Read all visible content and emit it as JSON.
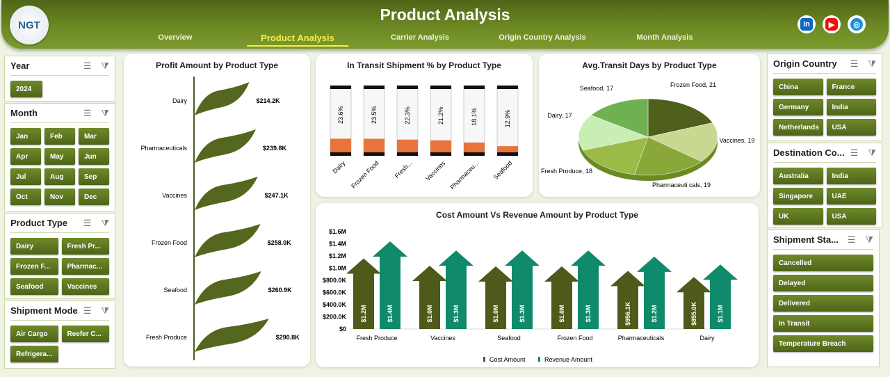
{
  "header": {
    "logo": "NGT",
    "title": "Product Analysis",
    "nav": [
      "Overview",
      "Product Analysis",
      "Carrier Analysis",
      "Origin Country Analysis",
      "Month Analysis"
    ],
    "active": 1,
    "social": [
      "linkedin-icon",
      "youtube-icon",
      "globe-icon"
    ]
  },
  "left_slicers": [
    {
      "title": "Year",
      "items": [
        "2024"
      ]
    },
    {
      "title": "Month",
      "items": [
        "Jan",
        "Feb",
        "Mar",
        "Apr",
        "May",
        "Jun",
        "Jul",
        "Aug",
        "Sep",
        "Oct",
        "Nov",
        "Dec"
      ]
    },
    {
      "title": "Product Type",
      "items": [
        "Dairy",
        "Fresh Pr...",
        "Frozen F...",
        "Pharmac...",
        "Seafood",
        "Vaccines"
      ]
    },
    {
      "title": "Shipment Mode",
      "items": [
        "Air Cargo",
        "Reefer C...",
        "Refrigera..."
      ]
    }
  ],
  "right_slicers": [
    {
      "title": "Origin Country",
      "items": [
        "China",
        "France",
        "Germany",
        "India",
        "Netherlands",
        "USA"
      ]
    },
    {
      "title": "Destination Co...",
      "items": [
        "Australia",
        "India",
        "Singapore",
        "UAE",
        "UK",
        "USA"
      ]
    },
    {
      "title": "Shipment Sta...",
      "items": [
        "Cancelled",
        "Delayed",
        "Delivered",
        "In Transit",
        "Temperature Breach"
      ]
    }
  ],
  "chart_data": [
    {
      "type": "bar",
      "title": "Profit Amount by Product Type",
      "categories": [
        "Dairy",
        "Pharmaceuticals",
        "Vaccines",
        "Frozen Food",
        "Seafood",
        "Fresh Produce"
      ],
      "values": [
        214.2,
        239.8,
        247.1,
        258.0,
        260.9,
        290.8
      ],
      "labels": [
        "$214.2K",
        "$239.8K",
        "$247.1K",
        "$258.0K",
        "$260.9K",
        "$290.8K"
      ],
      "unit": "$K"
    },
    {
      "type": "bar",
      "title": "In Transit Shipment % by Product Type",
      "categories": [
        "Dairy",
        "Frozen Food",
        "Fresh...",
        "Vaccines",
        "Pharmaceu...",
        "Seafood"
      ],
      "values": [
        23.6,
        23.5,
        22.3,
        21.2,
        18.1,
        12.9
      ],
      "labels": [
        "23.6%",
        "23.5%",
        "22.3%",
        "21.2%",
        "18.1%",
        "12.9%"
      ],
      "ylim": [
        0,
        100
      ]
    },
    {
      "type": "pie",
      "title": "Avg.Transit Days by Product Type",
      "categories": [
        "Frozen Food",
        "Vaccines",
        "Pharmaceuticals",
        "Fresh Produce",
        "Dairy",
        "Seafood"
      ],
      "values": [
        21,
        19,
        19,
        18,
        17,
        17
      ],
      "labels": [
        "Frozen Food, 21",
        "Vaccines, 19",
        "Pharmaceuti cals, 19",
        "Fresh Produce, 18",
        "Dairy, 17",
        "Seafood, 17"
      ]
    },
    {
      "type": "bar",
      "title": "Cost Amount Vs Revenue Amount by Product Type",
      "categories": [
        "Fresh Produce",
        "Vaccines",
        "Seafood",
        "Frozen Food",
        "Pharmaceuticals",
        "Dairy"
      ],
      "series": [
        {
          "name": "Cost Amount",
          "values": [
            1.16,
            1.04,
            1.03,
            1.03,
            0.956,
            0.855
          ],
          "labels": [
            "$1.2M",
            "$1.0M",
            "$1.0M",
            "$1.0M",
            "$956.1K",
            "$855.0K"
          ]
        },
        {
          "name": "Revenue Amount",
          "values": [
            1.44,
            1.29,
            1.29,
            1.29,
            1.19,
            1.06
          ],
          "labels": [
            "$1.4M",
            "$1.3M",
            "$1.3M",
            "$1.3M",
            "$1.2M",
            "$1.1M"
          ]
        }
      ],
      "yticks": [
        "$0",
        "$200.0K",
        "$400.0K",
        "$600.0K",
        "$800.0K",
        "$1.0M",
        "$1.2M",
        "$1.4M",
        "$1.6M"
      ],
      "ylim": [
        0,
        1.6
      ],
      "unit": "$M"
    }
  ],
  "colors": {
    "cost": "#4e5a1a",
    "revenue": "#0f8a6a",
    "transit": "#e8743a",
    "pie": [
      "#4f5f1c",
      "#c9d890",
      "#8aa83a",
      "#9cba48",
      "#c8eeb4",
      "#6fb050"
    ]
  }
}
